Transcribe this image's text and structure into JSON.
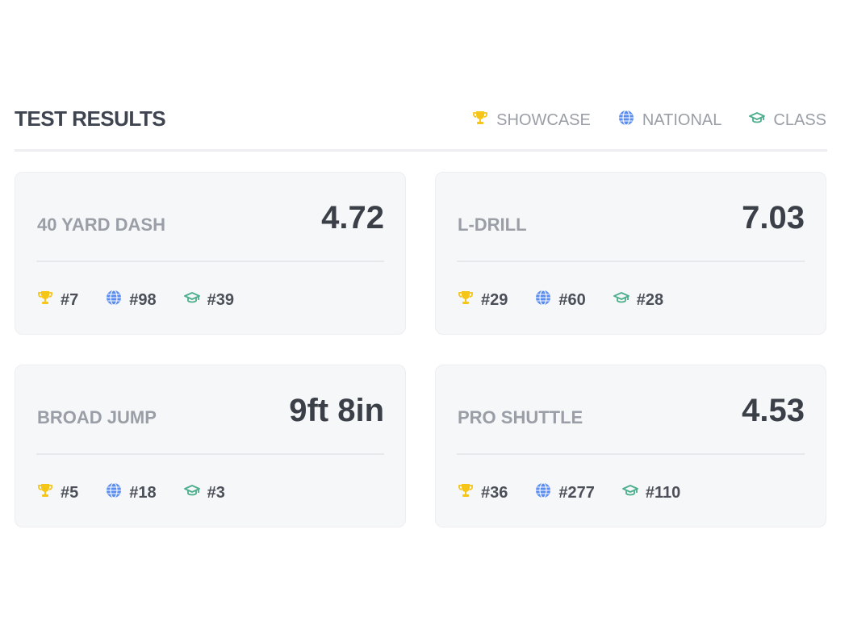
{
  "header": {
    "title": "TEST RESULTS"
  },
  "legend": [
    {
      "label": "SHOWCASE"
    },
    {
      "label": "NATIONAL"
    },
    {
      "label": "CLASS"
    }
  ],
  "cards": [
    {
      "name": "40 YARD DASH",
      "value": "4.72",
      "ranks": [
        "#7",
        "#98",
        "#39"
      ]
    },
    {
      "name": "L-DRILL",
      "value": "7.03",
      "ranks": [
        "#29",
        "#60",
        "#28"
      ]
    },
    {
      "name": "BROAD JUMP",
      "value": "9ft 8in",
      "ranks": [
        "#5",
        "#18",
        "#3"
      ]
    },
    {
      "name": "PRO SHUTTLE",
      "value": "4.53",
      "ranks": [
        "#36",
        "#277",
        "#110"
      ]
    }
  ]
}
